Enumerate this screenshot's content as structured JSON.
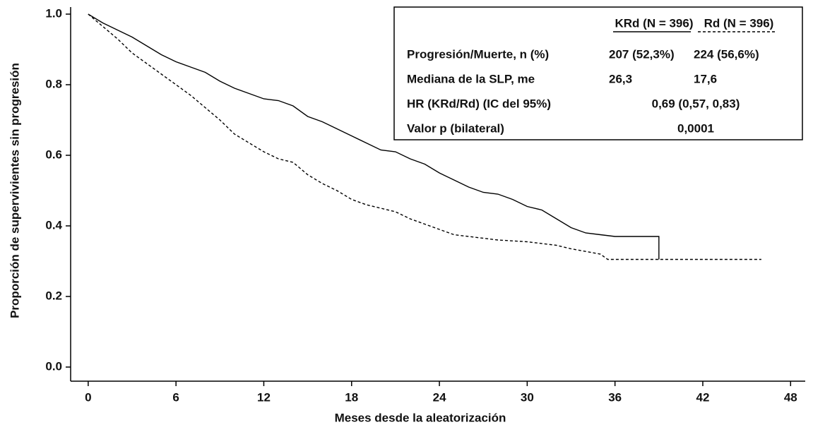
{
  "chart_data": {
    "type": "line",
    "x_label": "Meses desde la aleatorización",
    "y_label": "Proporción de supervivientes sin progresión",
    "xlim": [
      -1.2,
      49
    ],
    "ylim": [
      -0.04,
      1.02
    ],
    "xticks": [
      0,
      6,
      12,
      18,
      24,
      30,
      36,
      42,
      48
    ],
    "yticks": [
      {
        "value": 0,
        "label": "0.0"
      },
      {
        "value": 0.2,
        "label": "0.2"
      },
      {
        "value": 0.4,
        "label": "0.4"
      },
      {
        "value": 0.6,
        "label": "0.6"
      },
      {
        "value": 0.8,
        "label": "0.8"
      },
      {
        "value": 1,
        "label": "1.0"
      }
    ],
    "series": [
      {
        "name": "KRd (N = 396)",
        "color": "#000000",
        "dashed": false,
        "x": [
          0,
          1,
          2,
          3,
          4,
          5,
          6,
          7,
          8,
          9,
          10,
          11,
          12,
          13,
          14,
          15,
          16,
          17,
          18,
          19,
          20,
          21,
          22,
          23,
          24,
          25,
          26,
          27,
          28,
          29,
          30,
          31,
          32,
          33,
          34,
          35,
          36,
          39,
          39
        ],
        "values": [
          1.0,
          0.975,
          0.955,
          0.935,
          0.91,
          0.885,
          0.865,
          0.85,
          0.835,
          0.81,
          0.79,
          0.775,
          0.76,
          0.755,
          0.74,
          0.71,
          0.695,
          0.675,
          0.655,
          0.635,
          0.615,
          0.61,
          0.59,
          0.575,
          0.55,
          0.53,
          0.51,
          0.495,
          0.49,
          0.475,
          0.455,
          0.445,
          0.42,
          0.395,
          0.38,
          0.375,
          0.37,
          0.37,
          0.305
        ]
      },
      {
        "name": "Rd (N = 396)",
        "color": "#000000",
        "dashed": true,
        "x": [
          0,
          1,
          2,
          3,
          4,
          5,
          6,
          7,
          8,
          9,
          10,
          11,
          12,
          13,
          14,
          15,
          16,
          17,
          18,
          19,
          20,
          21,
          22,
          23,
          24,
          25,
          26,
          28,
          30,
          32,
          33,
          35,
          35.5,
          46
        ],
        "values": [
          1.0,
          0.965,
          0.93,
          0.89,
          0.86,
          0.83,
          0.8,
          0.77,
          0.735,
          0.7,
          0.66,
          0.635,
          0.61,
          0.59,
          0.58,
          0.545,
          0.52,
          0.5,
          0.475,
          0.46,
          0.45,
          0.44,
          0.42,
          0.405,
          0.39,
          0.375,
          0.37,
          0.36,
          0.355,
          0.345,
          0.335,
          0.32,
          0.305,
          0.305
        ]
      }
    ],
    "legend_table": {
      "rows": [
        [
          "Progresión/Muerte, n (%)",
          "207 (52,3%)",
          "224 (56,6%)"
        ],
        [
          "Mediana de la SLP, me",
          "26,3",
          "17,6"
        ]
      ],
      "merged_rows": [
        [
          "HR (KRd/Rd) (IC del 95%)",
          "0,69 (0,57, 0,83)"
        ],
        [
          "Valor p (bilateral)",
          "0,0001"
        ]
      ]
    }
  }
}
